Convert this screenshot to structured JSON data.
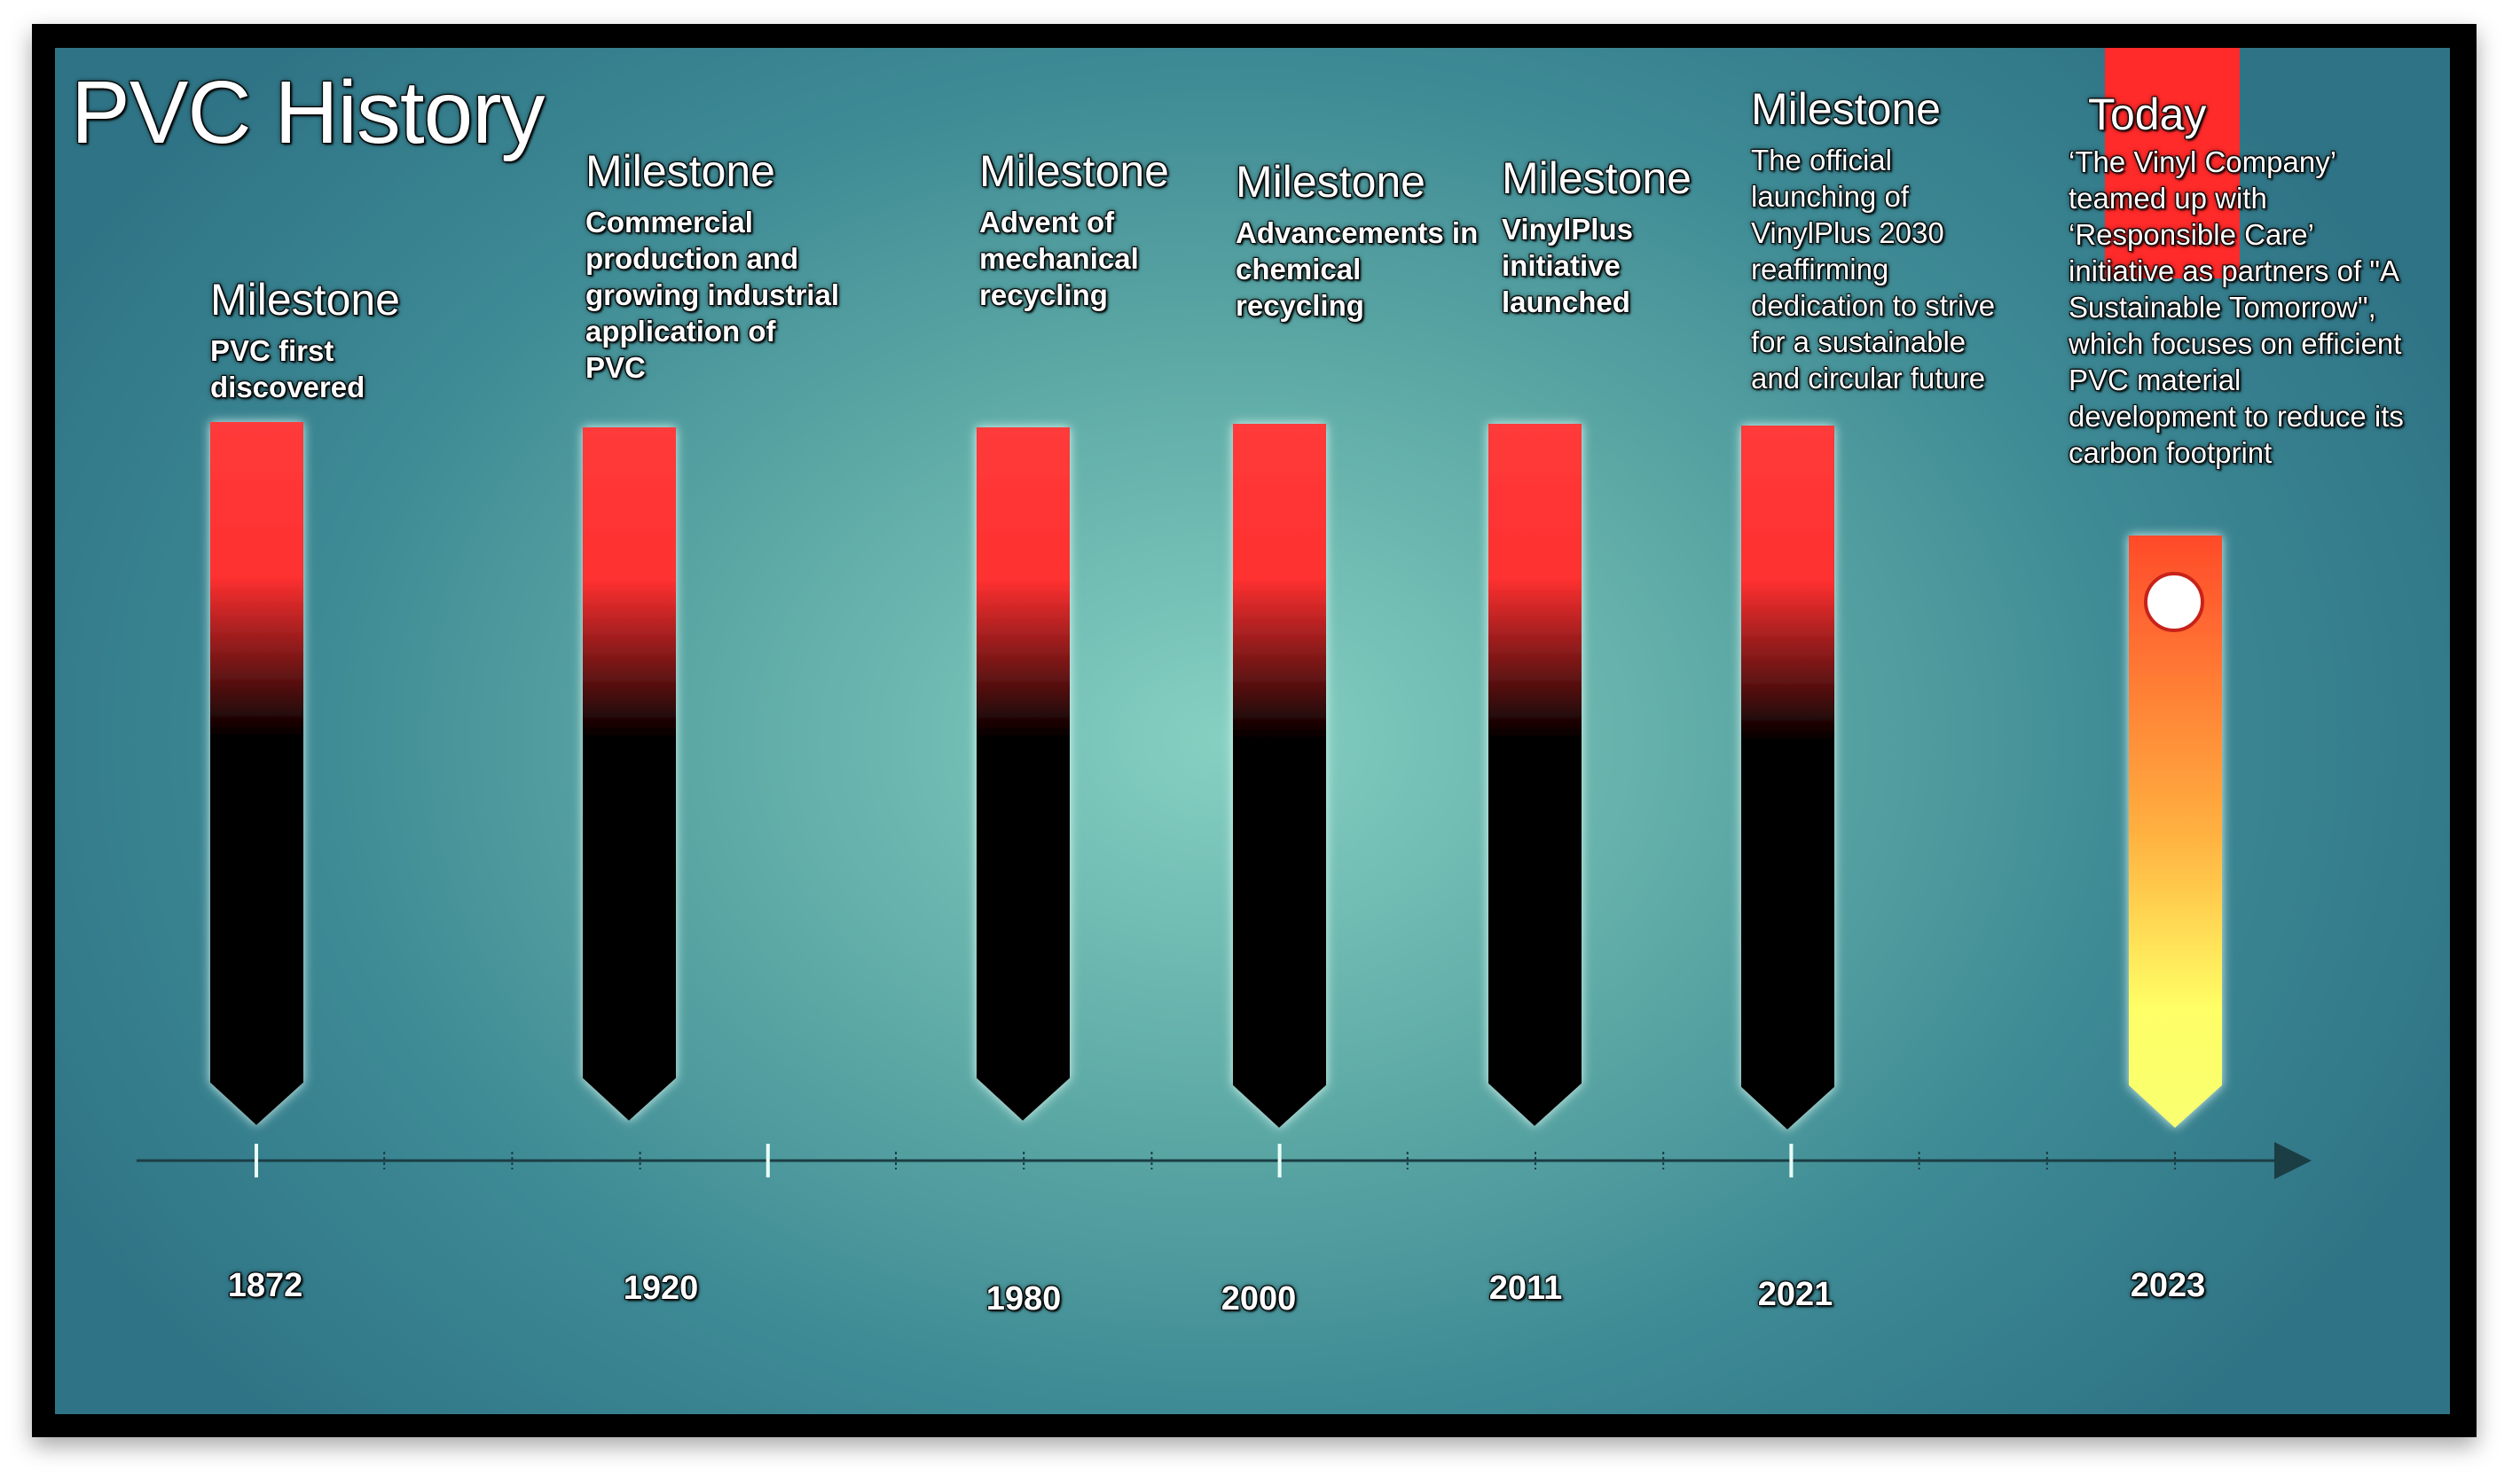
{
  "title": "PVC History",
  "milestones": [
    {
      "heading": "Milestone",
      "lines": [
        "PVC first",
        "discovered"
      ],
      "year": "1872"
    },
    {
      "heading": "Milestone",
      "lines": [
        "Commercial",
        "production and",
        "growing industrial",
        "application of",
        "PVC"
      ],
      "year": "1920"
    },
    {
      "heading": "Milestone",
      "lines": [
        "Advent of",
        "mechanical",
        "recycling"
      ],
      "year": "1980"
    },
    {
      "heading": "Milestone",
      "lines": [
        "Advancements in",
        "chemical",
        "recycling"
      ],
      "year": "2000"
    },
    {
      "heading": "Milestone",
      "lines": [
        "VinylPlus",
        "initiative",
        "launched"
      ],
      "year": "2011"
    },
    {
      "heading": "Milestone",
      "lines": [
        "The official",
        "launching of",
        "VinylPlus 2030",
        "reaffirming",
        "dedication to strive",
        "for a sustainable",
        "and circular future"
      ],
      "year": "2021"
    },
    {
      "heading": "Today",
      "lines": [
        "‘The Vinyl Company’",
        "teamed up with",
        "‘Responsible Care’",
        "initiative as partners of \"A",
        "Sustainable Tomorrow\",",
        "which focuses on efficient",
        "PVC material",
        "development to reduce its",
        "carbon footprint"
      ],
      "year": "2023"
    }
  ],
  "colors": {
    "bar_top": "#ff3a3a",
    "bar_bottom": "#000000",
    "today_top": "#ff4a2a",
    "today_bottom": "#ffff66",
    "axis": "#1b3d44"
  }
}
